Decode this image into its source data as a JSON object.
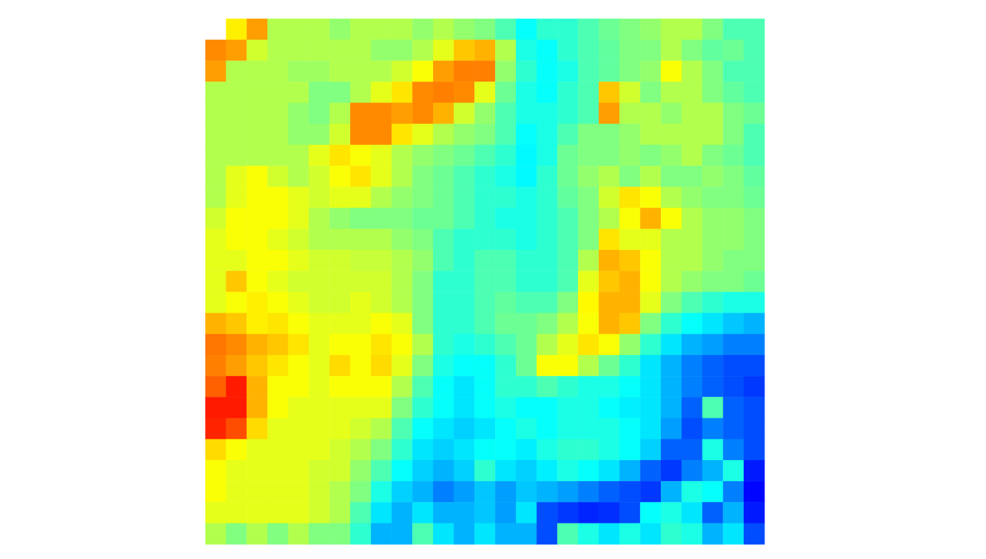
{
  "chart_data": {
    "type": "heatmap",
    "tick_labels": false,
    "color_range": [
      0,
      1
    ],
    "cells": [
      [
        null,
        0.64,
        0.72,
        0.55,
        0.55,
        0.55,
        0.52,
        0.55,
        0.55,
        0.55,
        0.52,
        0.55,
        0.52,
        0.5,
        0.45,
        0.38,
        0.42,
        0.42,
        0.45,
        0.48,
        0.5,
        0.52,
        0.55,
        0.55,
        0.5,
        0.45,
        0.45
      ],
      [
        0.74,
        0.72,
        0.58,
        0.55,
        0.55,
        0.55,
        0.55,
        0.55,
        0.52,
        0.52,
        0.55,
        0.6,
        0.68,
        0.7,
        0.55,
        0.4,
        0.38,
        0.42,
        0.45,
        0.47,
        0.5,
        0.5,
        0.55,
        0.5,
        0.47,
        0.48,
        0.45
      ],
      [
        0.72,
        0.55,
        0.55,
        0.55,
        0.53,
        0.53,
        0.55,
        0.55,
        0.55,
        0.58,
        0.62,
        0.72,
        0.75,
        0.75,
        0.52,
        0.42,
        0.38,
        0.4,
        0.45,
        0.47,
        0.5,
        0.52,
        0.62,
        0.55,
        0.5,
        0.45,
        0.45
      ],
      [
        0.55,
        0.55,
        0.55,
        0.55,
        0.55,
        0.5,
        0.5,
        0.55,
        0.6,
        0.65,
        0.74,
        0.75,
        0.74,
        0.6,
        0.48,
        0.4,
        0.38,
        0.42,
        0.45,
        0.68,
        0.58,
        0.5,
        0.55,
        0.55,
        0.5,
        0.47,
        0.45
      ],
      [
        0.55,
        0.55,
        0.55,
        0.55,
        0.52,
        0.5,
        0.55,
        0.74,
        0.74,
        0.72,
        0.74,
        0.7,
        0.58,
        0.52,
        0.45,
        0.4,
        0.4,
        0.42,
        0.45,
        0.72,
        0.55,
        0.55,
        0.52,
        0.55,
        0.55,
        0.5,
        0.48
      ],
      [
        0.55,
        0.55,
        0.55,
        0.55,
        0.52,
        0.52,
        0.58,
        0.74,
        0.74,
        0.65,
        0.6,
        0.55,
        0.52,
        0.5,
        0.45,
        0.38,
        0.4,
        0.45,
        0.5,
        0.5,
        0.52,
        0.55,
        0.55,
        0.55,
        0.55,
        0.5,
        0.45
      ],
      [
        0.55,
        0.55,
        0.55,
        0.55,
        0.55,
        0.6,
        0.65,
        0.62,
        0.6,
        0.55,
        0.52,
        0.5,
        0.48,
        0.45,
        0.42,
        0.37,
        0.4,
        0.48,
        0.5,
        0.5,
        0.52,
        0.5,
        0.52,
        0.55,
        0.5,
        0.48,
        0.45
      ],
      [
        0.55,
        0.6,
        0.62,
        0.58,
        0.55,
        0.58,
        0.62,
        0.65,
        0.6,
        0.55,
        0.5,
        0.48,
        0.45,
        0.42,
        0.4,
        0.37,
        0.42,
        0.48,
        0.52,
        0.55,
        0.5,
        0.55,
        0.5,
        0.5,
        0.52,
        0.5,
        0.47
      ],
      [
        0.55,
        0.6,
        0.62,
        0.62,
        0.6,
        0.58,
        0.6,
        0.6,
        0.55,
        0.52,
        0.5,
        0.48,
        0.45,
        0.42,
        0.42,
        0.4,
        0.42,
        0.47,
        0.5,
        0.58,
        0.65,
        0.62,
        0.55,
        0.52,
        0.5,
        0.5,
        0.48
      ],
      [
        0.58,
        0.62,
        0.62,
        0.62,
        0.6,
        0.55,
        0.52,
        0.5,
        0.5,
        0.5,
        0.48,
        0.48,
        0.45,
        0.42,
        0.4,
        0.4,
        0.42,
        0.45,
        0.5,
        0.55,
        0.62,
        0.7,
        0.62,
        0.55,
        0.52,
        0.52,
        0.5
      ],
      [
        0.6,
        0.62,
        0.62,
        0.6,
        0.58,
        0.55,
        0.55,
        0.55,
        0.55,
        0.52,
        0.5,
        0.45,
        0.42,
        0.42,
        0.42,
        0.4,
        0.42,
        0.45,
        0.5,
        0.65,
        0.6,
        0.6,
        0.55,
        0.55,
        0.52,
        0.52,
        0.5
      ],
      [
        0.6,
        0.6,
        0.62,
        0.62,
        0.6,
        0.58,
        0.58,
        0.57,
        0.57,
        0.55,
        0.52,
        0.45,
        0.42,
        0.45,
        0.45,
        0.42,
        0.42,
        0.45,
        0.55,
        0.7,
        0.68,
        0.62,
        0.55,
        0.55,
        0.52,
        0.5,
        0.5
      ],
      [
        0.6,
        0.68,
        0.62,
        0.6,
        0.58,
        0.58,
        0.58,
        0.58,
        0.58,
        0.55,
        0.5,
        0.42,
        0.42,
        0.45,
        0.45,
        0.42,
        0.42,
        0.45,
        0.6,
        0.68,
        0.7,
        0.62,
        0.55,
        0.52,
        0.5,
        0.5,
        0.48
      ],
      [
        0.6,
        0.62,
        0.64,
        0.62,
        0.6,
        0.58,
        0.58,
        0.6,
        0.58,
        0.55,
        0.5,
        0.42,
        0.42,
        0.45,
        0.47,
        0.45,
        0.45,
        0.5,
        0.63,
        0.7,
        0.7,
        0.6,
        0.5,
        0.45,
        0.42,
        0.4,
        0.4
      ],
      [
        0.7,
        0.68,
        0.64,
        0.65,
        0.62,
        0.6,
        0.6,
        0.6,
        0.62,
        0.6,
        0.5,
        0.42,
        0.42,
        0.45,
        0.48,
        0.48,
        0.5,
        0.55,
        0.62,
        0.7,
        0.68,
        0.5,
        0.42,
        0.38,
        0.35,
        0.32,
        0.3
      ],
      [
        0.76,
        0.74,
        0.7,
        0.68,
        0.65,
        0.6,
        0.62,
        0.62,
        0.65,
        0.62,
        0.55,
        0.42,
        0.4,
        0.42,
        0.45,
        0.48,
        0.55,
        0.6,
        0.65,
        0.62,
        0.52,
        0.42,
        0.35,
        0.3,
        0.28,
        0.25,
        0.25
      ],
      [
        0.75,
        0.72,
        0.68,
        0.65,
        0.62,
        0.6,
        0.66,
        0.62,
        0.66,
        0.6,
        0.5,
        0.4,
        0.38,
        0.38,
        0.42,
        0.48,
        0.62,
        0.62,
        0.55,
        0.48,
        0.42,
        0.35,
        0.3,
        0.25,
        0.22,
        0.2,
        0.2
      ],
      [
        0.78,
        0.85,
        0.7,
        0.62,
        0.62,
        0.6,
        0.62,
        0.62,
        0.62,
        0.55,
        0.45,
        0.38,
        0.35,
        0.38,
        0.42,
        0.42,
        0.45,
        0.42,
        0.4,
        0.4,
        0.38,
        0.35,
        0.3,
        0.25,
        0.22,
        0.2,
        0.18
      ],
      [
        0.85,
        0.85,
        0.7,
        0.62,
        0.6,
        0.6,
        0.6,
        0.6,
        0.6,
        0.5,
        0.42,
        0.38,
        0.35,
        0.38,
        0.4,
        0.38,
        0.38,
        0.4,
        0.4,
        0.38,
        0.36,
        0.35,
        0.3,
        0.22,
        0.45,
        0.22,
        0.2
      ],
      [
        0.84,
        0.8,
        0.66,
        0.6,
        0.6,
        0.6,
        0.6,
        0.58,
        0.55,
        0.45,
        0.38,
        0.35,
        0.33,
        0.35,
        0.38,
        0.4,
        0.38,
        0.4,
        0.4,
        0.4,
        0.38,
        0.35,
        0.28,
        0.2,
        0.25,
        0.22,
        0.2
      ],
      [
        0.66,
        0.62,
        0.6,
        0.6,
        0.6,
        0.6,
        0.58,
        0.55,
        0.5,
        0.42,
        0.35,
        0.33,
        0.35,
        0.38,
        0.38,
        0.36,
        0.4,
        0.42,
        0.42,
        0.4,
        0.38,
        0.33,
        0.22,
        0.22,
        0.4,
        0.25,
        0.2
      ],
      [
        0.62,
        0.6,
        0.6,
        0.6,
        0.6,
        0.58,
        0.58,
        0.52,
        0.45,
        0.38,
        0.33,
        0.3,
        0.33,
        0.42,
        0.35,
        0.33,
        0.36,
        0.4,
        0.38,
        0.35,
        0.3,
        0.22,
        0.18,
        0.25,
        0.3,
        0.4,
        0.15
      ],
      [
        0.62,
        0.6,
        0.6,
        0.6,
        0.6,
        0.58,
        0.55,
        0.5,
        0.4,
        0.33,
        0.3,
        0.25,
        0.28,
        0.32,
        0.28,
        0.32,
        0.3,
        0.28,
        0.25,
        0.22,
        0.2,
        0.18,
        0.3,
        0.4,
        0.38,
        0.25,
        0.13
      ],
      [
        0.6,
        0.6,
        0.6,
        0.6,
        0.6,
        0.58,
        0.55,
        0.45,
        0.35,
        0.3,
        0.35,
        0.3,
        0.3,
        0.32,
        0.28,
        0.35,
        0.2,
        0.18,
        0.16,
        0.17,
        0.2,
        0.38,
        0.4,
        0.35,
        0.22,
        0.3,
        0.15
      ],
      [
        0.55,
        0.5,
        0.55,
        0.5,
        0.55,
        0.5,
        0.5,
        0.42,
        0.3,
        0.3,
        0.45,
        0.35,
        0.3,
        0.35,
        0.3,
        0.3,
        0.2,
        0.45,
        0.4,
        0.35,
        0.4,
        0.35,
        0.42,
        0.4,
        0.3,
        0.35,
        0.2
      ]
    ]
  }
}
